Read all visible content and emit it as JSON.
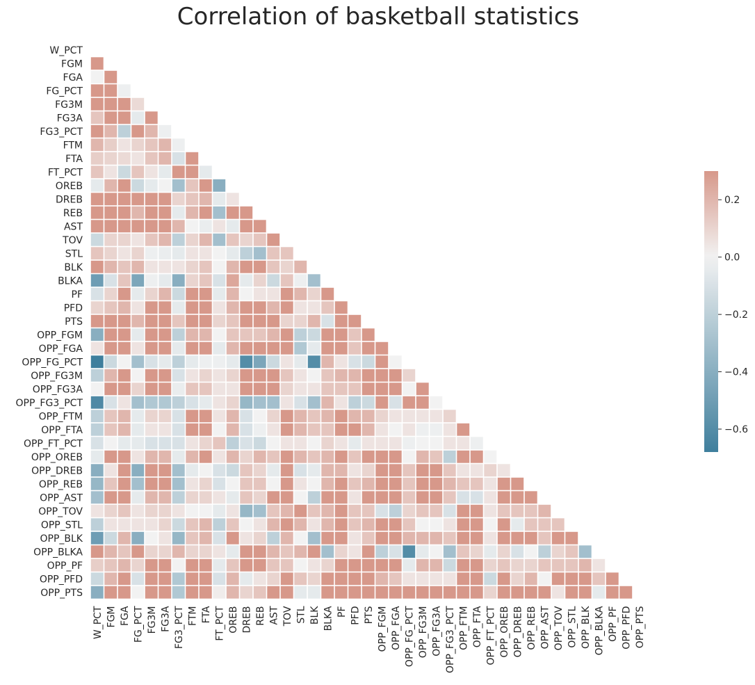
{
  "chart_data": {
    "type": "heatmap",
    "title": "Correlation of basketball statistics",
    "labels": [
      "W_PCT",
      "FGM",
      "FGA",
      "FG_PCT",
      "FG3M",
      "FG3A",
      "FG3_PCT",
      "FTM",
      "FTA",
      "FT_PCT",
      "OREB",
      "DREB",
      "REB",
      "AST",
      "TOV",
      "STL",
      "BLK",
      "BLKA",
      "PF",
      "PFD",
      "PTS",
      "OPP_FGM",
      "OPP_FGA",
      "OPP_FG_PCT",
      "OPP_FG3M",
      "OPP_FG3A",
      "OPP_FG3_PCT",
      "OPP_FTM",
      "OPP_FTA",
      "OPP_FT_PCT",
      "OPP_OREB",
      "OPP_DREB",
      "OPP_REB",
      "OPP_AST",
      "OPP_TOV",
      "OPP_STL",
      "OPP_BLK",
      "OPP_BLKA",
      "OPP_PF",
      "OPP_PFD",
      "OPP_PTS"
    ],
    "mask": "upper triangle including diagonal",
    "lower_triangle_values": [
      [],
      [
        0.3
      ],
      [
        0.0,
        0.3
      ],
      [
        0.3,
        0.3,
        -0.02
      ],
      [
        0.3,
        0.3,
        0.3,
        0.08
      ],
      [
        0.15,
        0.3,
        0.3,
        -0.05,
        0.3
      ],
      [
        0.3,
        0.2,
        -0.2,
        0.3,
        0.2,
        -0.02
      ],
      [
        0.2,
        0.12,
        0.05,
        0.1,
        0.15,
        0.2,
        -0.02
      ],
      [
        0.12,
        0.1,
        0.08,
        0.05,
        0.15,
        0.2,
        -0.1,
        0.3
      ],
      [
        0.15,
        0.05,
        -0.15,
        0.15,
        0.05,
        -0.05,
        0.3,
        0.3,
        -0.05
      ],
      [
        -0.05,
        0.2,
        0.3,
        -0.15,
        -0.05,
        0.0,
        -0.3,
        0.15,
        0.3,
        -0.4
      ],
      [
        0.3,
        0.3,
        0.3,
        0.3,
        0.3,
        0.3,
        0.1,
        0.15,
        0.2,
        -0.05,
        0.05
      ],
      [
        0.3,
        0.3,
        0.3,
        0.2,
        0.3,
        0.3,
        -0.05,
        0.2,
        0.3,
        -0.3,
        0.3,
        0.3
      ],
      [
        0.3,
        0.3,
        0.3,
        0.3,
        0.3,
        0.3,
        0.2,
        0.0,
        -0.03,
        0.05,
        -0.05,
        0.3,
        0.3
      ],
      [
        -0.15,
        0.1,
        0.1,
        0.05,
        0.15,
        0.2,
        -0.2,
        0.1,
        0.2,
        -0.3,
        0.15,
        0.1,
        0.15,
        0.3
      ],
      [
        0.15,
        0.1,
        0.05,
        0.1,
        -0.02,
        -0.03,
        -0.05,
        0.05,
        0.05,
        0.0,
        -0.05,
        -0.2,
        -0.3,
        0.15,
        0.15
      ],
      [
        0.3,
        0.2,
        0.15,
        0.2,
        0.05,
        0.05,
        0.05,
        0.1,
        0.15,
        0.0,
        0.2,
        0.3,
        0.3,
        0.15,
        0.1,
        0.2
      ],
      [
        -0.5,
        -0.1,
        0.15,
        -0.45,
        -0.02,
        -0.05,
        -0.4,
        0.1,
        0.15,
        -0.1,
        0.25,
        -0.05,
        0.1,
        -0.15,
        0.15,
        -0.02,
        -0.3
      ],
      [
        -0.1,
        0.1,
        0.3,
        -0.05,
        0.1,
        0.2,
        -0.15,
        0.3,
        0.3,
        -0.05,
        0.2,
        0.0,
        0.05,
        0.05,
        0.3,
        0.2,
        0.1,
        0.3
      ],
      [
        0.1,
        0.15,
        0.2,
        0.05,
        0.3,
        0.3,
        -0.05,
        0.3,
        0.3,
        0.05,
        0.2,
        0.3,
        0.3,
        0.2,
        0.3,
        0.05,
        0.05,
        0.15,
        0.3
      ],
      [
        0.3,
        0.3,
        0.3,
        0.2,
        0.3,
        0.3,
        0.15,
        0.3,
        0.3,
        0.1,
        0.15,
        0.3,
        0.3,
        0.3,
        0.1,
        0.1,
        0.2,
        -0.1,
        0.3,
        0.3
      ],
      [
        -0.4,
        0.3,
        0.3,
        -0.05,
        0.3,
        0.3,
        -0.2,
        0.2,
        0.2,
        0.0,
        0.15,
        0.15,
        0.15,
        0.2,
        0.3,
        -0.2,
        -0.15,
        0.3,
        0.3,
        0.15,
        0.3
      ],
      [
        0.05,
        0.3,
        0.3,
        0.05,
        0.3,
        0.3,
        -0.05,
        0.3,
        0.3,
        -0.05,
        0.2,
        0.3,
        0.3,
        0.3,
        0.3,
        -0.25,
        -0.05,
        0.3,
        0.3,
        0.15,
        0.3,
        0.3
      ],
      [
        -0.68,
        -0.15,
        0.0,
        -0.3,
        -0.1,
        -0.05,
        -0.2,
        -0.05,
        -0.02,
        -0.02,
        -0.05,
        -0.6,
        -0.45,
        -0.15,
        0.05,
        -0.05,
        -0.6,
        0.2,
        0.05,
        -0.1,
        -0.15,
        0.3,
        0.0
      ],
      [
        -0.2,
        0.2,
        0.3,
        0.0,
        0.3,
        0.3,
        -0.1,
        0.05,
        0.1,
        0.05,
        0.1,
        0.3,
        0.3,
        0.3,
        0.15,
        0.05,
        0.0,
        0.15,
        0.2,
        0.2,
        0.3,
        0.3,
        0.3,
        0.1
      ],
      [
        0.0,
        0.3,
        0.3,
        0.1,
        0.3,
        0.3,
        -0.03,
        0.15,
        0.15,
        0.05,
        0.05,
        0.3,
        0.3,
        0.3,
        0.1,
        0.05,
        0.05,
        0.15,
        0.15,
        0.15,
        0.3,
        0.3,
        0.3,
        0.0,
        0.3
      ],
      [
        -0.62,
        -0.1,
        0.05,
        -0.3,
        -0.25,
        -0.25,
        -0.2,
        -0.1,
        -0.05,
        0.05,
        0.1,
        -0.35,
        -0.3,
        -0.3,
        0.05,
        -0.1,
        -0.3,
        0.2,
        0.05,
        -0.2,
        -0.15,
        0.3,
        -0.1,
        0.3,
        0.3
      ],
      [
        -0.2,
        0.15,
        0.2,
        -0.05,
        0.1,
        0.1,
        -0.1,
        0.3,
        0.3,
        0.05,
        0.2,
        -0.1,
        0.0,
        0.1,
        0.3,
        0.2,
        0.15,
        0.2,
        0.3,
        0.2,
        0.2,
        0.1,
        0.05,
        0.05,
        0.05,
        0.05,
        0.1
      ],
      [
        -0.2,
        0.15,
        0.2,
        -0.05,
        0.05,
        0.05,
        -0.1,
        0.3,
        0.3,
        0.0,
        0.2,
        -0.1,
        -0.02,
        0.05,
        0.3,
        0.2,
        0.15,
        0.15,
        0.3,
        0.3,
        0.2,
        0.05,
        0.0,
        0.05,
        -0.02,
        -0.02,
        0.05,
        0.3
      ],
      [
        -0.1,
        0.0,
        -0.05,
        -0.05,
        -0.1,
        -0.1,
        -0.1,
        0.05,
        0.1,
        0.15,
        -0.2,
        -0.1,
        -0.15,
        0.0,
        0.05,
        0.05,
        0.0,
        0.1,
        0.05,
        -0.05,
        0.05,
        0.05,
        0.05,
        -0.02,
        0.0,
        0.0,
        0.05,
        0.05,
        -0.02
      ],
      [
        -0.05,
        0.3,
        0.3,
        0.05,
        0.2,
        0.2,
        -0.05,
        0.2,
        0.3,
        0.05,
        0.2,
        0.1,
        0.2,
        0.15,
        0.3,
        0.2,
        0.15,
        0.2,
        0.3,
        0.15,
        0.3,
        0.3,
        0.3,
        0.0,
        0.2,
        0.15,
        -0.2,
        0.3,
        0.3
      ],
      [
        -0.4,
        0.05,
        0.3,
        -0.4,
        0.3,
        0.3,
        -0.3,
        -0.05,
        0.0,
        -0.1,
        -0.15,
        0.15,
        0.1,
        -0.05,
        0.3,
        -0.1,
        -0.05,
        0.2,
        0.2,
        0.05,
        0.1,
        0.3,
        0.3,
        0.15,
        0.3,
        0.3,
        0.15,
        0.05,
        0.05,
        0.1,
        0.05
      ],
      [
        -0.35,
        0.15,
        0.3,
        -0.3,
        0.3,
        0.3,
        -0.3,
        0.05,
        0.1,
        -0.1,
        0.0,
        0.15,
        0.15,
        0.0,
        0.3,
        0.05,
        0.0,
        0.2,
        0.3,
        0.15,
        0.2,
        0.3,
        0.3,
        0.15,
        0.3,
        0.3,
        0.2,
        0.15,
        0.15,
        0.05,
        0.3,
        0.3
      ],
      [
        -0.3,
        0.3,
        0.3,
        -0.05,
        0.2,
        0.2,
        -0.2,
        0.1,
        0.1,
        0.05,
        -0.05,
        0.15,
        0.1,
        0.3,
        0.3,
        0.0,
        -0.2,
        0.3,
        0.3,
        0.05,
        0.3,
        0.3,
        0.3,
        0.15,
        0.3,
        0.3,
        0.15,
        -0.1,
        -0.1,
        0.05,
        0.3,
        0.3,
        0.3
      ],
      [
        0.05,
        0.1,
        0.15,
        0.05,
        0.1,
        0.1,
        0.05,
        0.0,
        0.0,
        -0.05,
        0.05,
        -0.35,
        -0.3,
        0.15,
        0.2,
        0.3,
        0.15,
        0.2,
        0.3,
        0.15,
        0.15,
        -0.1,
        -0.2,
        0.1,
        0.15,
        0.15,
        -0.1,
        0.3,
        0.3,
        0.05,
        0.15,
        0.15,
        0.15,
        0.2
      ],
      [
        -0.2,
        0.05,
        0.05,
        0.05,
        0.05,
        0.1,
        -0.15,
        0.15,
        0.2,
        -0.2,
        0.15,
        0.0,
        0.05,
        0.2,
        0.3,
        0.2,
        0.05,
        0.2,
        0.3,
        0.15,
        0.2,
        0.3,
        0.3,
        0.15,
        0.0,
        0.0,
        0.05,
        0.3,
        0.3,
        0.0,
        0.3,
        -0.05,
        0.15,
        0.15,
        0.15
      ],
      [
        -0.5,
        -0.15,
        0.2,
        -0.4,
        0.0,
        0.05,
        -0.35,
        0.15,
        0.2,
        -0.1,
        0.3,
        0.05,
        0.1,
        -0.2,
        0.2,
        0.0,
        -0.3,
        0.3,
        0.3,
        0.05,
        0.15,
        0.3,
        0.3,
        0.2,
        0.2,
        0.2,
        0.15,
        0.3,
        0.3,
        0.05,
        0.3,
        0.3,
        0.3,
        0.15,
        0.3,
        0.3
      ],
      [
        0.3,
        0.2,
        0.15,
        0.3,
        0.1,
        0.1,
        0.2,
        0.1,
        0.1,
        0.05,
        -0.05,
        0.3,
        0.3,
        0.2,
        0.15,
        0.2,
        0.3,
        -0.3,
        0.1,
        0.05,
        0.3,
        -0.2,
        -0.1,
        -0.6,
        -0.05,
        0.0,
        -0.3,
        0.15,
        0.1,
        -0.05,
        0.1,
        -0.1,
        0.0,
        -0.2,
        0.1,
        0.15,
        -0.3
      ],
      [
        0.12,
        0.15,
        0.2,
        0.1,
        0.3,
        0.3,
        0.0,
        0.3,
        0.3,
        -0.05,
        0.15,
        0.3,
        0.3,
        0.15,
        0.15,
        0.0,
        0.05,
        0.1,
        0.3,
        0.3,
        0.3,
        0.3,
        0.3,
        -0.05,
        0.2,
        0.2,
        -0.15,
        0.3,
        0.3,
        0.1,
        0.15,
        0.1,
        0.1,
        0.15,
        0.15,
        0.15,
        0.2,
        0.05
      ],
      [
        -0.15,
        0.2,
        0.3,
        -0.1,
        0.3,
        0.3,
        -0.25,
        0.3,
        0.3,
        -0.1,
        0.2,
        -0.05,
        0.05,
        0.1,
        0.3,
        0.15,
        0.1,
        0.3,
        0.3,
        0.3,
        0.3,
        0.2,
        0.15,
        0.05,
        0.05,
        0.05,
        0.05,
        0.3,
        0.3,
        -0.15,
        0.3,
        0.1,
        0.2,
        0.0,
        0.3,
        0.3,
        0.3,
        0.15,
        0.3
      ],
      [
        -0.4,
        0.3,
        0.3,
        0.0,
        0.3,
        0.3,
        -0.25,
        0.3,
        0.3,
        0.02,
        0.2,
        0.1,
        0.15,
        0.3,
        0.3,
        -0.05,
        -0.05,
        0.3,
        0.3,
        0.3,
        0.3,
        0.3,
        0.3,
        0.3,
        0.3,
        0.3,
        0.3,
        0.3,
        0.3,
        0.1,
        0.3,
        0.3,
        0.3,
        0.3,
        0.05,
        0.3,
        0.3,
        -0.05,
        0.3,
        0.3
      ]
    ],
    "colorbar": {
      "ticks": [
        0.2,
        0.0,
        -0.2,
        -0.4,
        -0.6
      ],
      "tick_labels": [
        "0.2",
        "0.0",
        "−0.2",
        "−0.4",
        "−0.6"
      ],
      "range": [
        -0.68,
        0.3
      ]
    },
    "colors": {
      "low": "#3f7f9d",
      "mid": "#f2f2f2",
      "high": "#d7988a"
    }
  }
}
